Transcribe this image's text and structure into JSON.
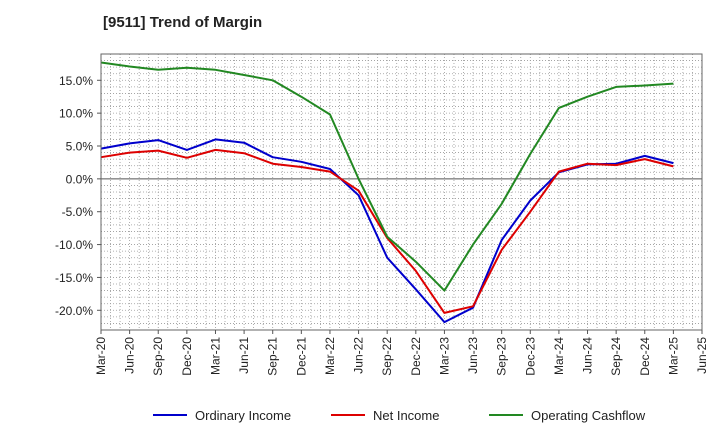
{
  "chart_data": {
    "type": "line",
    "title": "[9511]  Trend of Margin",
    "xlabel": "",
    "ylabel": "",
    "x": [
      "Mar-20",
      "Jun-20",
      "Sep-20",
      "Dec-20",
      "Mar-21",
      "Jun-21",
      "Sep-21",
      "Dec-21",
      "Mar-22",
      "Jun-22",
      "Sep-22",
      "Dec-22",
      "Mar-23",
      "Jun-23",
      "Sep-23",
      "Dec-23",
      "Mar-24",
      "Jun-24",
      "Sep-24",
      "Dec-24",
      "Mar-25",
      "Jun-25"
    ],
    "ylim": [
      -23.0,
      19.0
    ],
    "yticks": [
      15,
      10,
      5,
      0,
      -5,
      -10,
      -15,
      -20
    ],
    "ytick_labels": [
      "15.0%",
      "10.0%",
      "5.0%",
      "0.0%",
      "-5.0%",
      "-10.0%",
      "-15.0%",
      "-20.0%"
    ],
    "grid": true,
    "legend_position": "bottom",
    "series": [
      {
        "name": "Ordinary Income",
        "color": "#0000cc",
        "values": [
          4.6,
          5.4,
          5.9,
          4.4,
          6.0,
          5.5,
          3.3,
          2.6,
          1.5,
          -2.5,
          -12.0,
          -16.8,
          -21.8,
          -19.6,
          -9.3,
          -3.3,
          1.0,
          2.2,
          2.3,
          3.5,
          2.4,
          null
        ]
      },
      {
        "name": "Net Income",
        "color": "#dd0000",
        "values": [
          3.3,
          4.0,
          4.3,
          3.2,
          4.4,
          3.9,
          2.3,
          1.8,
          1.1,
          -1.8,
          -9.0,
          -14.0,
          -20.4,
          -19.4,
          -10.8,
          -5.0,
          1.1,
          2.3,
          2.1,
          3.0,
          1.9,
          null
        ]
      },
      {
        "name": "Operating Cashflow",
        "color": "#228822",
        "values": [
          17.7,
          17.1,
          16.6,
          16.9,
          16.6,
          15.8,
          15.0,
          12.5,
          9.8,
          0.0,
          -8.8,
          -12.6,
          -17.0,
          -10.0,
          -3.8,
          3.8,
          10.8,
          12.5,
          14.0,
          14.2,
          14.5,
          null
        ]
      }
    ]
  }
}
